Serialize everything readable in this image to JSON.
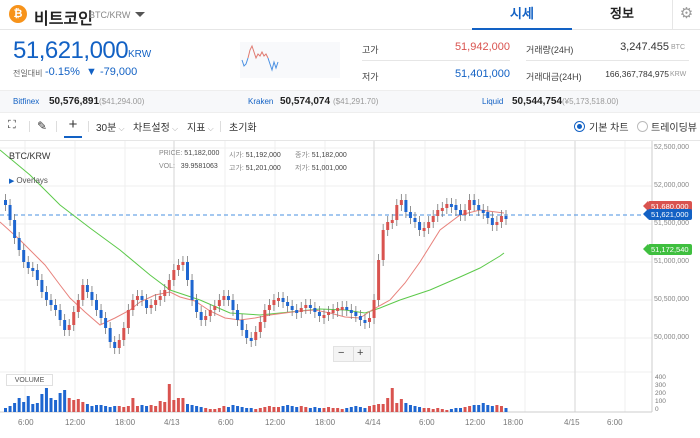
{
  "header": {
    "coin_icon": "bitcoin-icon",
    "coin_symbol": "₿",
    "coin_name": "비트코인",
    "pair": "BTC/KRW",
    "tabs": [
      {
        "label": "시세",
        "active": true
      },
      {
        "label": "정보",
        "active": false
      }
    ],
    "settings_icon": "⚙"
  },
  "ticker": {
    "price": "51,621,000",
    "unit": "KRW",
    "change_label": "전일대비",
    "change_pct": "-0.15%",
    "change_amt": "▼ -79,000"
  },
  "stats": {
    "high_label": "고가",
    "high": "51,942,000",
    "low_label": "저가",
    "low": "51,401,000",
    "volume_label": "거래량(24H)",
    "volume": "3,247.455",
    "volume_unit": "BTC",
    "value_label": "거래대금(24H)",
    "value": "166,367,784,975",
    "value_unit": "KRW"
  },
  "exchanges": [
    {
      "name": "Bitfinex",
      "price": "50,576,891",
      "foreign": "($41,294.00)"
    },
    {
      "name": "Kraken",
      "price": "50,574,074",
      "foreign": "($41,291.70)"
    },
    {
      "name": "Liquid",
      "price": "50,544,754",
      "foreign": "(¥5,173,518.00)"
    }
  ],
  "toolbar": {
    "fullscreen_icon": "⛶",
    "draw_icon": "✎",
    "crosshair_icon": "+",
    "interval": "30분",
    "chart_settings": "차트설정",
    "indicators": "지표",
    "reset": "초기화",
    "view_basic": "기본 차트",
    "view_tradingview": "트레이딩뷰"
  },
  "chart": {
    "symbol": "BTC/KRW",
    "overlays": "Overlays",
    "ohlc": {
      "price_label": "PRICE:",
      "price": "51,182,000",
      "vol_label": "VOL:",
      "vol": "39.9581063",
      "open_label": "시가:",
      "open": "51,192,000",
      "high_label": "고가:",
      "high": "51,201,000",
      "close_label": "종가:",
      "close": "51,182,000",
      "low_label": "저가:",
      "low": "51,001,000"
    },
    "y_labels": [
      "52,500,000",
      "52,000,000",
      "51,500,000",
      "51,000,000",
      "50,500,000",
      "50,000,000"
    ],
    "tags": {
      "ma_red": "51,680,000",
      "last": "51,621,000",
      "ma_green": "51,172,540"
    },
    "x_labels": [
      "6:00",
      "12:00",
      "18:00",
      "4/13",
      "6:00",
      "12:00",
      "18:00",
      "4/14",
      "6:00",
      "12:00",
      "18:00",
      "4/15",
      "6:00"
    ],
    "volume_label": "VOLUME",
    "volume_ticks": [
      "400",
      "300",
      "200",
      "100",
      "0"
    ],
    "zoom_out": "−",
    "zoom_in": "+",
    "colors": {
      "up": "#d9534f",
      "down": "#1e66d0",
      "ma_short": "#e8827c",
      "ma_long": "#5cc94a",
      "last_line": "#4a90e2"
    }
  }
}
